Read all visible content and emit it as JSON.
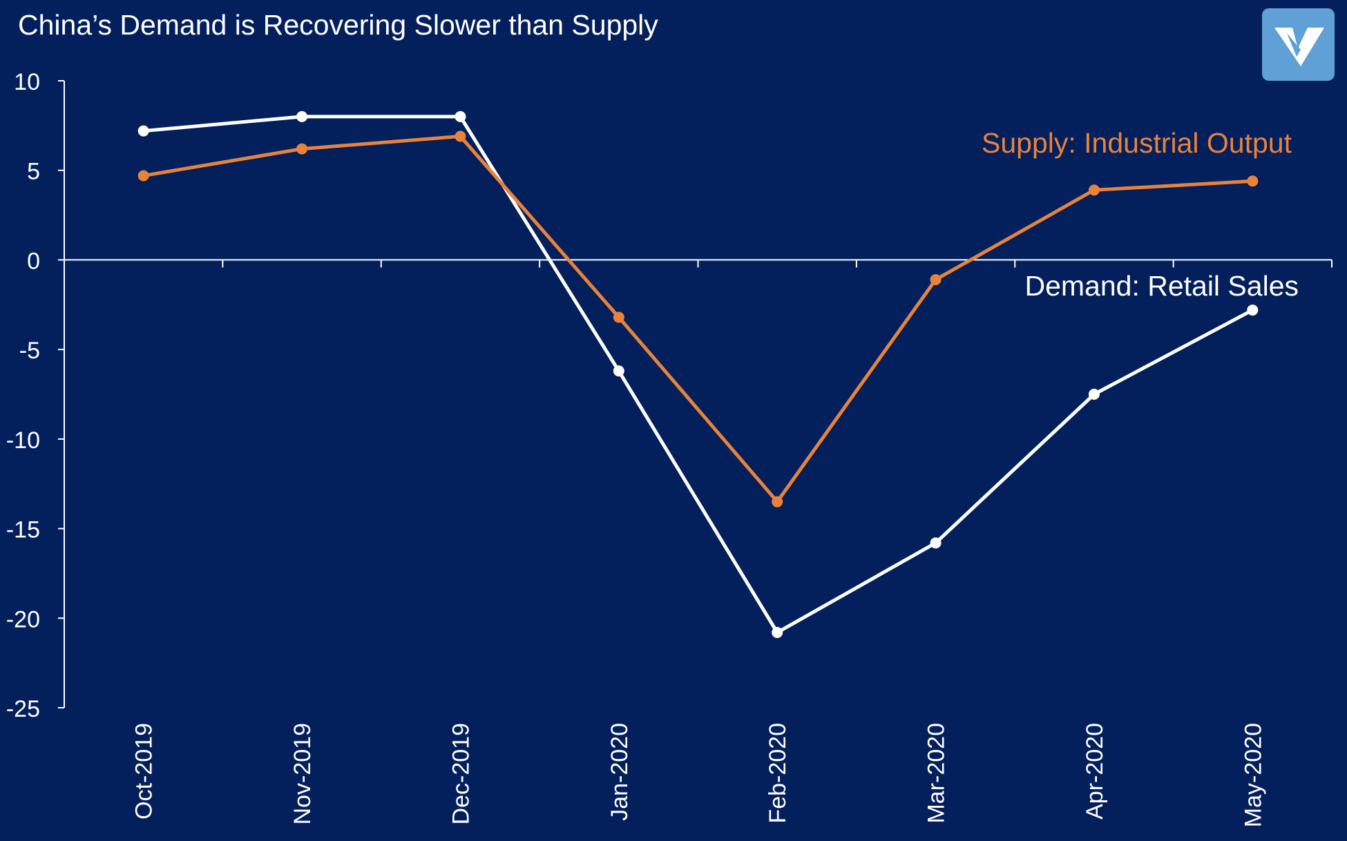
{
  "chart_data": {
    "type": "line",
    "title": "China’s Demand is Recovering Slower than Supply",
    "categories": [
      "Oct-2019",
      "Nov-2019",
      "Dec-2019",
      "Jan-2020",
      "Feb-2020",
      "Mar-2020",
      "Apr-2020",
      "May-2020"
    ],
    "series": [
      {
        "name": "Demand: Retail Sales",
        "values": [
          7.2,
          8.0,
          8.0,
          -6.2,
          -20.8,
          -15.8,
          -7.5,
          -2.8
        ],
        "color": "#FFFFFF"
      },
      {
        "name": "Supply: Industrial Output",
        "values": [
          4.7,
          6.2,
          6.9,
          -3.2,
          -13.5,
          -1.1,
          3.9,
          4.4
        ],
        "color": "#E8833A"
      }
    ],
    "ylim": [
      -25,
      10
    ],
    "yticks": [
      "10",
      "5",
      "0",
      "-5",
      "-10",
      "-15",
      "-20",
      "-25"
    ],
    "xlabel": "",
    "ylabel": "",
    "grid": false,
    "legend": "inline labels next to series"
  },
  "colors": {
    "background": "#03205C",
    "axis": "#FFFFFF",
    "logo": "#5FA0D7"
  },
  "logo_icon": "v-logo-icon"
}
